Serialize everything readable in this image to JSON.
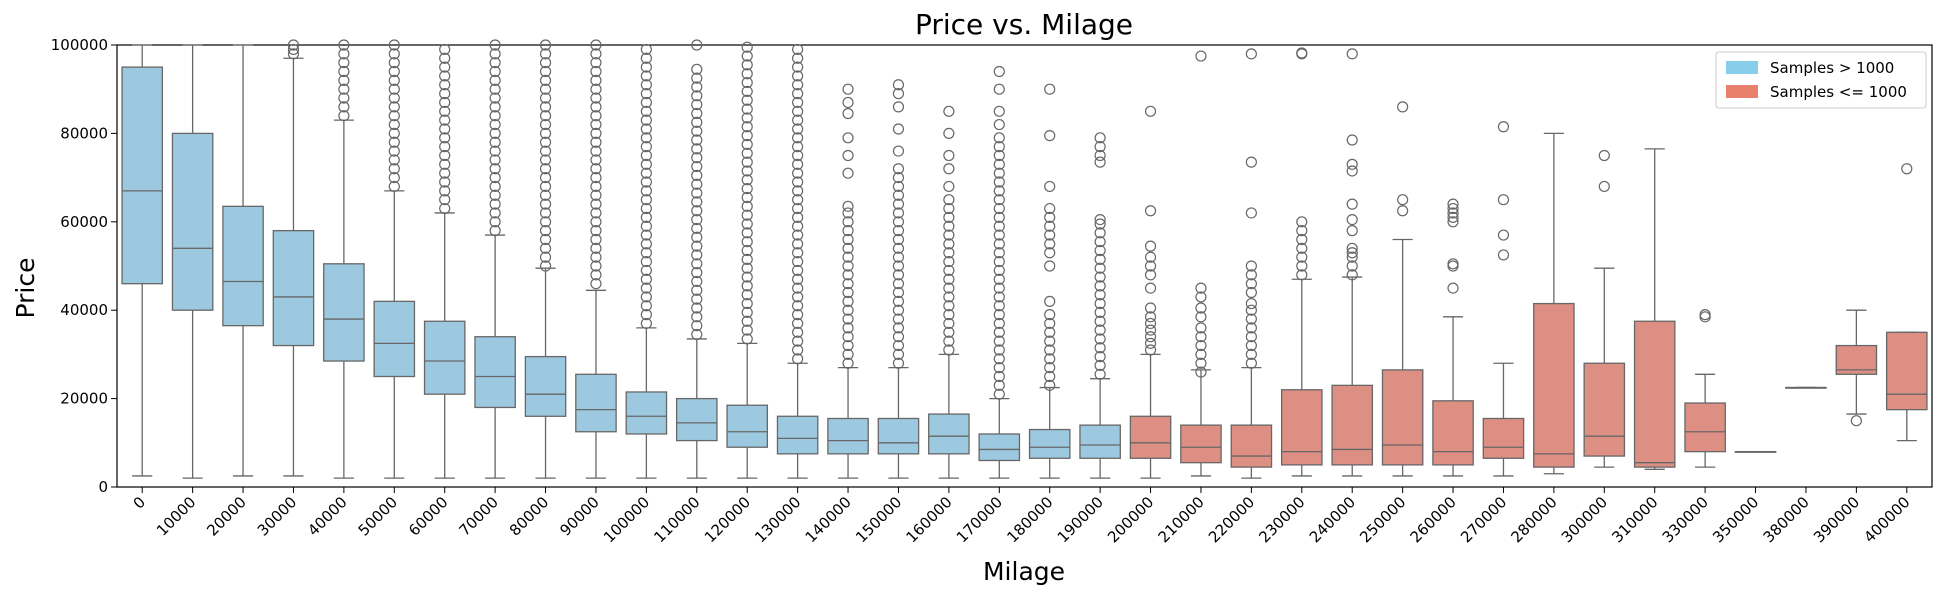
{
  "chart_data": {
    "type": "box",
    "title": "Price vs. Milage",
    "xlabel": "Milage",
    "ylabel": "Price",
    "ylim": [
      0,
      100000
    ],
    "yticks": [
      0,
      20000,
      40000,
      60000,
      80000,
      100000
    ],
    "grid": false,
    "legend_position": "top-right",
    "legend": [
      {
        "label": "Samples > 1000",
        "color": "#87ceeb"
      },
      {
        "label": "Samples <= 1000",
        "color": "#e9806e"
      }
    ],
    "categories": [
      "0",
      "10000",
      "20000",
      "30000",
      "40000",
      "50000",
      "60000",
      "70000",
      "80000",
      "90000",
      "100000",
      "110000",
      "120000",
      "130000",
      "140000",
      "150000",
      "160000",
      "170000",
      "180000",
      "190000",
      "200000",
      "210000",
      "220000",
      "230000",
      "240000",
      "250000",
      "260000",
      "270000",
      "280000",
      "300000",
      "310000",
      "330000",
      "350000",
      "380000",
      "390000",
      "400000"
    ],
    "group": [
      "Samples > 1000",
      "Samples > 1000",
      "Samples > 1000",
      "Samples > 1000",
      "Samples > 1000",
      "Samples > 1000",
      "Samples > 1000",
      "Samples > 1000",
      "Samples > 1000",
      "Samples > 1000",
      "Samples > 1000",
      "Samples > 1000",
      "Samples > 1000",
      "Samples > 1000",
      "Samples > 1000",
      "Samples > 1000",
      "Samples > 1000",
      "Samples > 1000",
      "Samples > 1000",
      "Samples > 1000",
      "Samples <= 1000",
      "Samples <= 1000",
      "Samples <= 1000",
      "Samples <= 1000",
      "Samples <= 1000",
      "Samples <= 1000",
      "Samples <= 1000",
      "Samples <= 1000",
      "Samples <= 1000",
      "Samples <= 1000",
      "Samples <= 1000",
      "Samples <= 1000",
      "Samples <= 1000",
      "Samples <= 1000",
      "Samples <= 1000",
      "Samples <= 1000"
    ],
    "whisker_low": [
      2500,
      2000,
      2500,
      2500,
      2000,
      2000,
      2000,
      2000,
      2000,
      2000,
      2000,
      2000,
      2000,
      2000,
      2000,
      2000,
      2000,
      2000,
      2000,
      2000,
      2000,
      2500,
      2000,
      2500,
      2500,
      2500,
      2500,
      2500,
      3000,
      4500,
      4000,
      4500,
      8000,
      22500,
      16500,
      10500
    ],
    "q1": [
      46000,
      40000,
      36500,
      32000,
      28500,
      25000,
      21000,
      18000,
      16000,
      12500,
      12000,
      10500,
      9000,
      7500,
      7500,
      7500,
      7500,
      6000,
      6500,
      6500,
      6500,
      5500,
      4500,
      5000,
      5000,
      5000,
      5000,
      6500,
      4500,
      7000,
      4500,
      8000,
      8000,
      22500,
      25500,
      17500
    ],
    "median": [
      67000,
      54000,
      46500,
      43000,
      38000,
      32500,
      28500,
      25000,
      21000,
      17500,
      16000,
      14500,
      12500,
      11000,
      10500,
      10000,
      11500,
      8500,
      9000,
      9500,
      10000,
      9000,
      7000,
      8000,
      8500,
      9500,
      8000,
      9000,
      7500,
      11500,
      5500,
      12500,
      8000,
      22500,
      26500,
      21000
    ],
    "q3": [
      95000,
      80000,
      63500,
      58000,
      50500,
      42000,
      37500,
      34000,
      29500,
      25500,
      21500,
      20000,
      18500,
      16000,
      15500,
      15500,
      16500,
      12000,
      13000,
      14000,
      16000,
      14000,
      14000,
      22000,
      23000,
      26500,
      19500,
      15500,
      41500,
      28000,
      37500,
      19000,
      8000,
      22500,
      32000,
      35000
    ],
    "whisker_high": [
      100000,
      100000,
      100000,
      97000,
      83000,
      67000,
      62000,
      57000,
      49500,
      44500,
      36000,
      33500,
      32500,
      28000,
      27000,
      27000,
      30000,
      20000,
      22500,
      24500,
      30000,
      26500,
      27000,
      47000,
      47500,
      56000,
      38500,
      28000,
      80000,
      49500,
      76500,
      25500,
      8000,
      22500,
      40000,
      35000
    ],
    "outliers": [
      [],
      [],
      [],
      [
        98000,
        99000,
        100000
      ],
      [
        84000,
        86000,
        88000,
        90000,
        92000,
        94000,
        96000,
        98000,
        100000
      ],
      [
        68000,
        70000,
        72000,
        74000,
        76000,
        78000,
        80000,
        82000,
        84000,
        86000,
        88000,
        90000,
        92000,
        94000,
        96000,
        98000,
        100000
      ],
      [
        63000,
        65000,
        67000,
        69000,
        71000,
        73000,
        75000,
        77000,
        79000,
        81000,
        83000,
        85000,
        87000,
        89000,
        91000,
        93000,
        95000,
        97000,
        99000
      ],
      [
        58000,
        60000,
        62000,
        64000,
        66000,
        68000,
        70000,
        72000,
        74000,
        76000,
        78000,
        80000,
        82000,
        84000,
        86000,
        88000,
        90000,
        92000,
        94000,
        96000,
        98000,
        100000
      ],
      [
        50000,
        52000,
        54000,
        56000,
        58000,
        60000,
        62000,
        64000,
        66000,
        68000,
        70000,
        72000,
        74000,
        76000,
        78000,
        80000,
        82000,
        84000,
        86000,
        88000,
        90000,
        92000,
        94000,
        96000,
        98000,
        100000
      ],
      [
        46000,
        48000,
        50000,
        52000,
        54000,
        56000,
        58000,
        60000,
        62000,
        64000,
        66000,
        68000,
        70000,
        72000,
        74000,
        76000,
        78000,
        80000,
        82000,
        84000,
        86000,
        88000,
        90000,
        92000,
        94000,
        96000,
        98000,
        100000
      ],
      [
        37000,
        39000,
        41000,
        43000,
        45000,
        47000,
        49000,
        51000,
        53000,
        55000,
        57000,
        59000,
        61000,
        63000,
        65000,
        67000,
        69000,
        71000,
        73000,
        75000,
        77000,
        79000,
        81000,
        83000,
        85000,
        87000,
        89000,
        91000,
        93000,
        95000,
        97000,
        99000
      ],
      [
        34500,
        36500,
        38500,
        40500,
        42500,
        44500,
        46500,
        48500,
        50500,
        52500,
        54500,
        56500,
        58500,
        60500,
        62500,
        64500,
        66500,
        68500,
        70500,
        72500,
        74500,
        76500,
        78500,
        80500,
        82500,
        84500,
        86500,
        88500,
        90500,
        92500,
        94500,
        100000
      ],
      [
        33500,
        35500,
        37500,
        39500,
        41500,
        43500,
        45500,
        47500,
        49500,
        51500,
        53500,
        55500,
        57500,
        59500,
        61500,
        63500,
        65500,
        67500,
        69500,
        71500,
        73500,
        75500,
        77500,
        79500,
        81500,
        83500,
        85500,
        87500,
        89500,
        91500,
        93500,
        95500,
        97500,
        99500
      ],
      [
        29000,
        31000,
        33000,
        35000,
        37000,
        39000,
        41000,
        43000,
        45000,
        47000,
        49000,
        51000,
        53000,
        55000,
        57000,
        59000,
        61000,
        63000,
        65000,
        67000,
        69000,
        71000,
        73000,
        75000,
        77000,
        79000,
        81000,
        83000,
        85000,
        87000,
        89000,
        91000,
        93000,
        95000,
        97000,
        99000
      ],
      [
        28000,
        30000,
        32000,
        34000,
        36000,
        38000,
        40000,
        42000,
        44000,
        46000,
        48000,
        50000,
        52000,
        54000,
        56000,
        58000,
        60000,
        62000,
        63500,
        71000,
        75000,
        79000,
        84500,
        87000,
        90000
      ],
      [
        28000,
        30000,
        32000,
        34000,
        36000,
        38000,
        40000,
        42000,
        44000,
        46000,
        48000,
        50000,
        52000,
        54000,
        56000,
        58000,
        60000,
        62000,
        64000,
        66000,
        68000,
        70000,
        72000,
        76000,
        81000,
        86000,
        89000,
        91000
      ],
      [
        31000,
        33000,
        35000,
        37000,
        39000,
        41000,
        43000,
        45000,
        47000,
        49000,
        51000,
        53000,
        55000,
        57000,
        59000,
        61000,
        63000,
        65000,
        68000,
        72000,
        75000,
        80000,
        85000
      ],
      [
        21000,
        23000,
        25000,
        27000,
        29000,
        31000,
        33000,
        35000,
        37000,
        39000,
        41000,
        43000,
        45000,
        47000,
        49000,
        51000,
        53000,
        55000,
        57000,
        59000,
        61000,
        63000,
        65000,
        67000,
        69000,
        71000,
        73000,
        75000,
        77000,
        79000,
        82000,
        85000,
        90000,
        94000
      ],
      [
        23000,
        25000,
        27000,
        29000,
        31000,
        33000,
        35000,
        37000,
        39000,
        42000,
        50000,
        53000,
        55000,
        57000,
        59000,
        61000,
        63000,
        68000,
        79500,
        90000
      ],
      [
        25500,
        27500,
        29500,
        31500,
        33500,
        35500,
        37500,
        39500,
        41500,
        43500,
        45500,
        47500,
        49500,
        51500,
        53500,
        55500,
        57500,
        59500,
        60500,
        73500,
        75000,
        77000,
        79000
      ],
      [
        31000,
        32500,
        34000,
        35500,
        37000,
        38500,
        40500,
        45000,
        48000,
        50000,
        52000,
        54500,
        62500,
        85000
      ],
      [
        26000,
        28000,
        30000,
        32000,
        34000,
        36000,
        38500,
        40500,
        43000,
        45000,
        97500
      ],
      [
        28000,
        30000,
        32000,
        34000,
        36000,
        38000,
        40000,
        41500,
        44000,
        46000,
        48000,
        50000,
        62000,
        73500,
        98000
      ],
      [
        48000,
        50000,
        52000,
        54000,
        56000,
        58000,
        60000,
        98000,
        98200
      ],
      [
        48000,
        50000,
        52000,
        53000,
        54000,
        58000,
        60500,
        64000,
        71500,
        73000,
        78500,
        98000
      ],
      [
        62500,
        65000,
        86000
      ],
      [
        45000,
        50000,
        50500,
        60000,
        61000,
        62000,
        63000,
        64000
      ],
      [
        52500,
        57000,
        65000,
        81500
      ],
      [],
      [
        68000,
        75000
      ],
      [],
      [
        38500,
        39000
      ],
      [],
      [],
      [
        15000
      ],
      [
        72000
      ]
    ]
  }
}
